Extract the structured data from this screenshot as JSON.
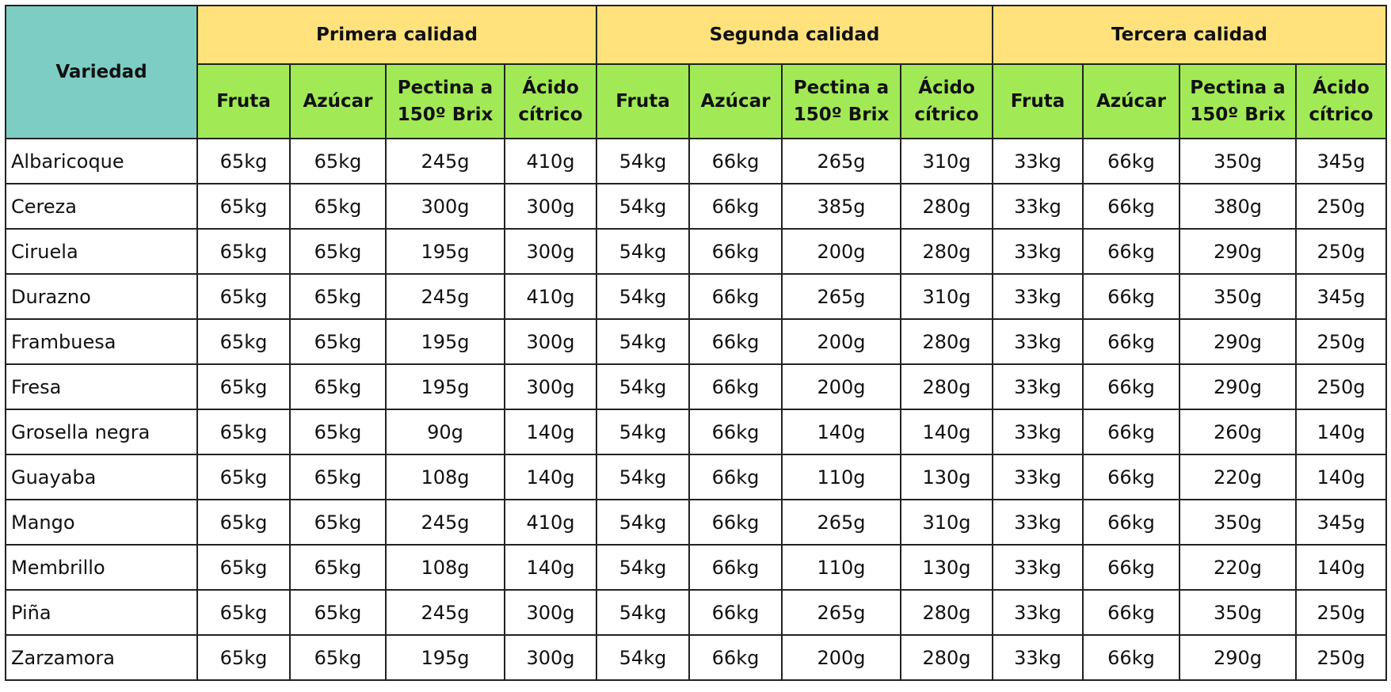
{
  "header": {
    "variety": "Variedad",
    "groups": [
      "Primera calidad",
      "Segunda calidad",
      "Tercera calidad"
    ],
    "columns": [
      [
        "Fruta",
        "Azúcar",
        "Pectina a 150º Brix",
        "Ácido cítrico"
      ],
      [
        "Fruta",
        "Azúcar",
        "Pectina a 150º Brix",
        "Ácido cítrico"
      ],
      [
        "Fruta",
        "Azúcar",
        "Pectina a 150º Brix",
        "Ácido cítrico"
      ]
    ]
  },
  "rows": [
    {
      "name": "Albaricoque",
      "values": [
        "65kg",
        "65kg",
        "245g",
        "410g",
        "54kg",
        "66kg",
        "265g",
        "310g",
        "33kg",
        "66kg",
        "350g",
        "345g"
      ]
    },
    {
      "name": "Cereza",
      "values": [
        "65kg",
        "65kg",
        "300g",
        "300g",
        "54kg",
        "66kg",
        "385g",
        "280g",
        "33kg",
        "66kg",
        "380g",
        "250g"
      ]
    },
    {
      "name": "Ciruela",
      "values": [
        "65kg",
        "65kg",
        "195g",
        "300g",
        "54kg",
        "66kg",
        "200g",
        "280g",
        "33kg",
        "66kg",
        "290g",
        "250g"
      ]
    },
    {
      "name": "Durazno",
      "values": [
        "65kg",
        "65kg",
        "245g",
        "410g",
        "54kg",
        "66kg",
        "265g",
        "310g",
        "33kg",
        "66kg",
        "350g",
        "345g"
      ]
    },
    {
      "name": "Frambuesa",
      "values": [
        "65kg",
        "65kg",
        "195g",
        "300g",
        "54kg",
        "66kg",
        "200g",
        "280g",
        "33kg",
        "66kg",
        "290g",
        "250g"
      ]
    },
    {
      "name": "Fresa",
      "values": [
        "65kg",
        "65kg",
        "195g",
        "300g",
        "54kg",
        "66kg",
        "200g",
        "280g",
        "33kg",
        "66kg",
        "290g",
        "250g"
      ]
    },
    {
      "name": "Grosella negra",
      "values": [
        "65kg",
        "65kg",
        "90g",
        "140g",
        "54kg",
        "66kg",
        "140g",
        "140g",
        "33kg",
        "66kg",
        "260g",
        "140g"
      ]
    },
    {
      "name": "Guayaba",
      "values": [
        "65kg",
        "65kg",
        "108g",
        "140g",
        "54kg",
        "66kg",
        "110g",
        "130g",
        "33kg",
        "66kg",
        "220g",
        "140g"
      ]
    },
    {
      "name": "Mango",
      "values": [
        "65kg",
        "65kg",
        "245g",
        "410g",
        "54kg",
        "66kg",
        "265g",
        "310g",
        "33kg",
        "66kg",
        "350g",
        "345g"
      ]
    },
    {
      "name": "Membrillo",
      "values": [
        "65kg",
        "65kg",
        "108g",
        "140g",
        "54kg",
        "66kg",
        "110g",
        "130g",
        "33kg",
        "66kg",
        "220g",
        "140g"
      ]
    },
    {
      "name": "Piña",
      "values": [
        "65kg",
        "65kg",
        "245g",
        "300g",
        "54kg",
        "66kg",
        "265g",
        "280g",
        "33kg",
        "66kg",
        "350g",
        "250g"
      ]
    },
    {
      "name": "Zarzamora",
      "values": [
        "65kg",
        "65kg",
        "195g",
        "300g",
        "54kg",
        "66kg",
        "200g",
        "280g",
        "33kg",
        "66kg",
        "290g",
        "250g"
      ]
    }
  ],
  "colors": {
    "variety_header": "#7ecdc4",
    "group_header": "#ffe27c",
    "sub_header": "#a2ea55"
  }
}
